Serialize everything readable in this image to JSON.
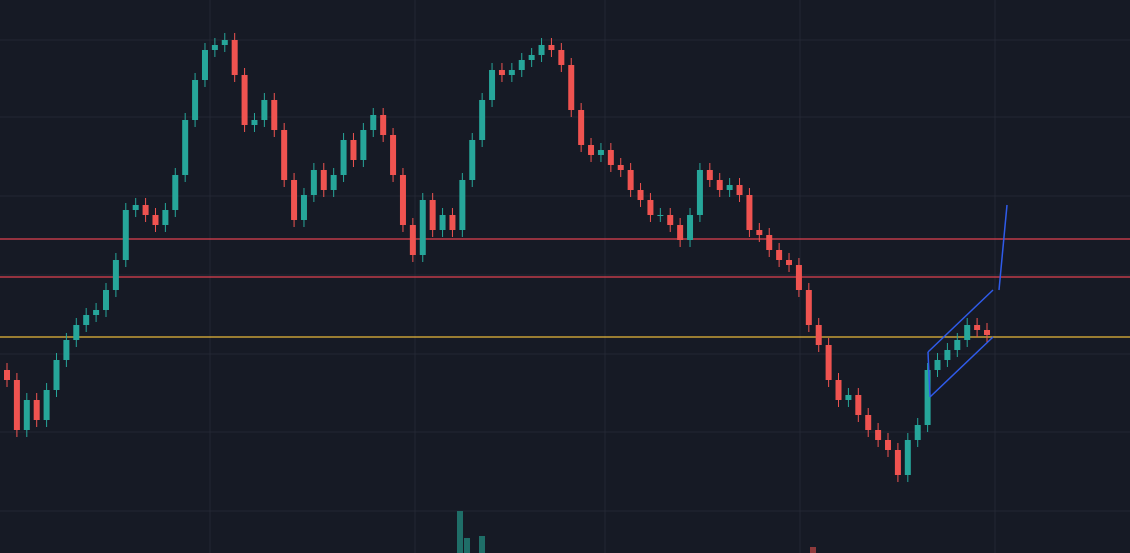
{
  "chart_data": {
    "type": "candlestick",
    "ylim": [
      0,
      553
    ],
    "up_color": "#26a69a",
    "down_color": "#ef5350",
    "open": [
      183,
      173,
      123,
      153,
      133,
      163,
      193,
      213,
      228,
      238,
      243,
      263,
      293,
      343,
      348,
      338,
      328,
      343,
      378,
      433,
      473,
      503,
      508,
      513,
      478,
      428,
      433,
      453,
      423,
      373,
      333,
      358,
      383,
      363,
      378,
      413,
      393,
      423,
      438,
      418,
      378,
      328,
      298,
      353,
      323,
      338,
      323,
      373,
      413,
      453,
      483,
      478,
      483,
      493,
      498,
      508,
      503,
      488,
      443,
      408,
      398,
      403,
      388,
      383,
      363,
      353,
      338,
      338,
      328,
      313,
      338,
      383,
      373,
      363,
      368,
      358,
      323,
      318,
      303,
      293,
      288,
      263,
      228,
      208,
      173,
      153,
      158,
      138,
      123,
      113,
      103,
      78,
      113,
      128,
      183,
      193,
      203,
      213,
      228,
      223
    ],
    "high": [
      190,
      180,
      160,
      160,
      170,
      200,
      220,
      235,
      245,
      250,
      270,
      300,
      350,
      355,
      355,
      345,
      350,
      385,
      440,
      480,
      510,
      515,
      520,
      520,
      485,
      440,
      460,
      460,
      430,
      380,
      365,
      390,
      390,
      385,
      420,
      420,
      430,
      445,
      445,
      425,
      385,
      335,
      360,
      360,
      345,
      345,
      380,
      420,
      460,
      490,
      490,
      490,
      500,
      505,
      515,
      515,
      510,
      495,
      450,
      415,
      410,
      410,
      395,
      390,
      370,
      360,
      345,
      345,
      335,
      345,
      390,
      390,
      380,
      375,
      375,
      365,
      330,
      325,
      310,
      300,
      295,
      270,
      235,
      215,
      180,
      165,
      165,
      145,
      130,
      120,
      110,
      120,
      135,
      190,
      200,
      210,
      220,
      235,
      235,
      230
    ],
    "low": [
      166,
      116,
      116,
      126,
      126,
      156,
      186,
      206,
      221,
      231,
      236,
      256,
      286,
      336,
      331,
      321,
      321,
      336,
      371,
      426,
      466,
      496,
      501,
      471,
      421,
      421,
      426,
      416,
      366,
      326,
      326,
      351,
      356,
      356,
      371,
      386,
      386,
      416,
      411,
      371,
      321,
      291,
      291,
      316,
      316,
      316,
      316,
      366,
      406,
      446,
      471,
      471,
      476,
      486,
      491,
      496,
      481,
      436,
      401,
      391,
      391,
      381,
      376,
      356,
      346,
      331,
      331,
      321,
      306,
      306,
      331,
      366,
      356,
      356,
      351,
      316,
      311,
      296,
      286,
      281,
      256,
      221,
      201,
      166,
      146,
      146,
      131,
      116,
      106,
      96,
      71,
      71,
      106,
      121,
      176,
      186,
      196,
      206,
      216,
      211
    ],
    "close": [
      173,
      123,
      153,
      133,
      163,
      193,
      213,
      228,
      238,
      243,
      263,
      293,
      343,
      348,
      338,
      328,
      343,
      378,
      433,
      473,
      503,
      508,
      513,
      478,
      428,
      433,
      453,
      423,
      373,
      333,
      358,
      383,
      363,
      378,
      413,
      393,
      423,
      438,
      418,
      378,
      328,
      298,
      353,
      323,
      338,
      323,
      373,
      413,
      453,
      483,
      478,
      483,
      493,
      498,
      508,
      503,
      488,
      443,
      408,
      398,
      403,
      388,
      383,
      363,
      353,
      338,
      338,
      328,
      313,
      338,
      383,
      373,
      363,
      368,
      358,
      323,
      318,
      303,
      293,
      288,
      263,
      228,
      208,
      173,
      153,
      158,
      138,
      123,
      113,
      103,
      78,
      113,
      128,
      183,
      193,
      203,
      213,
      228,
      223,
      218
    ],
    "levels": [
      {
        "value": 314,
        "color": "#e0404f"
      },
      {
        "value": 276,
        "color": "#e0404f"
      },
      {
        "value": 216,
        "color": "#e8b93a"
      }
    ]
  }
}
